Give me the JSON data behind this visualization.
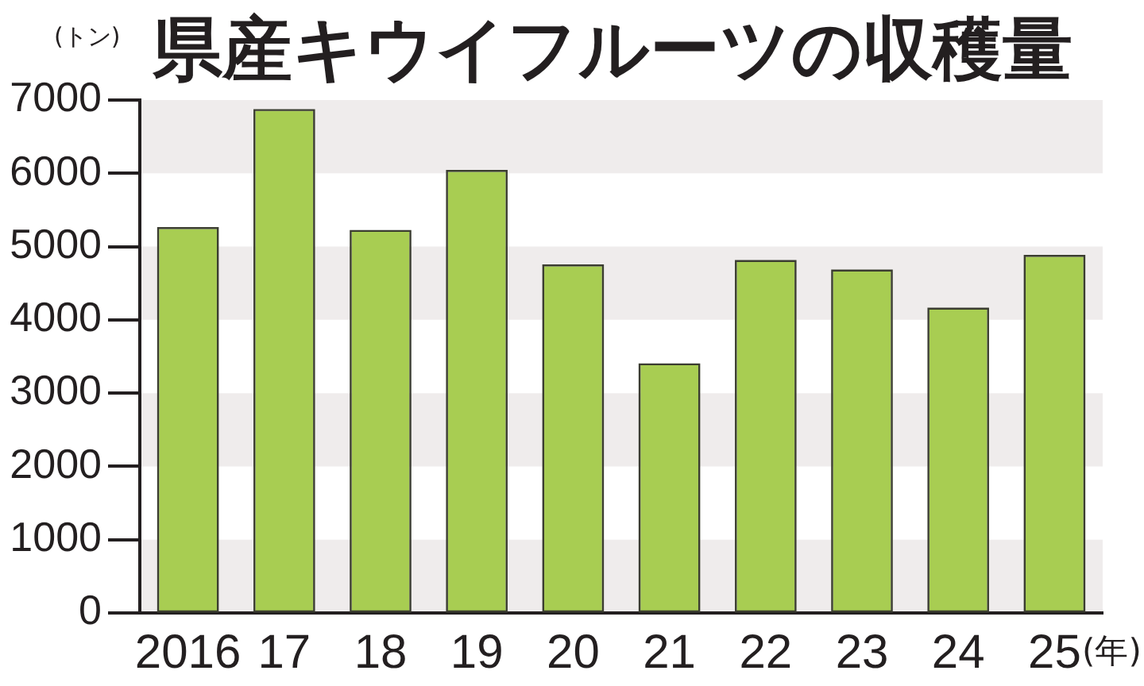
{
  "chart_data": {
    "type": "bar",
    "title": "県産キウイフルーツの収穫量",
    "ylabel": "(トン)",
    "xlabel": "(年)",
    "categories": [
      "2016",
      "17",
      "18",
      "19",
      "20",
      "21",
      "22",
      "23",
      "24",
      "25"
    ],
    "values": [
      5240,
      6850,
      5200,
      6020,
      4730,
      3380,
      4790,
      4660,
      4140,
      4860
    ],
    "color": "#a8cd52",
    "ylim": [
      0,
      7000
    ],
    "yticks": [
      0,
      1000,
      2000,
      3000,
      4000,
      5000,
      6000,
      7000
    ],
    "bands": [
      {
        "axis": "y",
        "from": 0,
        "to": 1000,
        "color": "#efecec"
      },
      {
        "axis": "y",
        "from": 2000,
        "to": 3000,
        "color": "#efecec"
      },
      {
        "axis": "y",
        "from": 4000,
        "to": 5000,
        "color": "#efecec"
      },
      {
        "axis": "y",
        "from": 6000,
        "to": 7000,
        "color": "#efecec"
      }
    ]
  }
}
